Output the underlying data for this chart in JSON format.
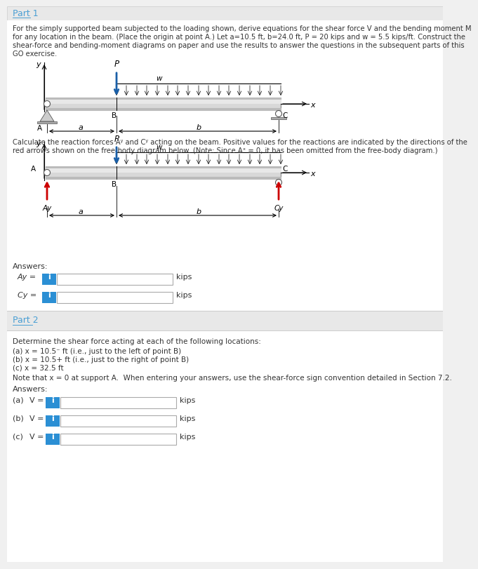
{
  "bg_color": "#f0f0f0",
  "part1_title": "Part 1",
  "part2_title": "Part 2",
  "problem_text_lines": [
    "For the simply supported beam subjected to the loading shown, derive equations for the shear force V and the bending moment M",
    "for any location in the beam. (Place the origin at point A.) Let a=10.5 ft, b=24.0 ft, P = 20 kips and w = 5.5 kips/ft. Construct the",
    "shear-force and bending-moment diagrams on paper and use the results to answer the questions in the subsequent parts of this",
    "GO exercise."
  ],
  "reaction_text_lines": [
    "Calculate the reaction forces Aʸ and Cʸ acting on the beam. Positive values for the reactions are indicated by the directions of the",
    "red arrows shown on the free-body diagram below. (Note: Since Aˣ = 0, it has been omitted from the free-body diagram.)"
  ],
  "answers_label": "Answers:",
  "kips": "kips",
  "part2_intro": "Determine the shear force acting at each of the following locations:",
  "part2_items": [
    "(a) x = 10.5⁻ ft (i.e., just to the left of point B)",
    "(b) x = 10.5+ ft (i.e., just to the right of point B)",
    "(c) x = 32.5 ft"
  ],
  "part2_note": "Note that x = 0 at support A.  When entering your answers, use the shear-force sign convention detailed in Section 7.2.",
  "arrow_blue": "#1a5fa8",
  "arrow_red": "#cc0000",
  "info_blue": "#2b8fd4",
  "border_gray": "#aaaaaa",
  "text_color": "#333333",
  "link_blue": "#4a9fd4",
  "header_bg": "#e8e8e8",
  "white": "#ffffff",
  "beam_light": "#d4d4d4",
  "beam_dark": "#888888",
  "beam_mid": "#c0c0c0"
}
